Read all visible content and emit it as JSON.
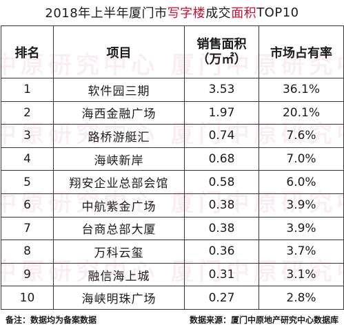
{
  "title": {
    "prefix": "2018年上半年厦门市",
    "highlight1": "写字楼",
    "middle": "成交",
    "highlight2": "面积",
    "suffix": "TOP10"
  },
  "headers": {
    "rank": "排名",
    "project": "项目",
    "area_line1": "销售面积",
    "area_line2": "（万㎡）",
    "share": "市场占有率"
  },
  "rows": [
    {
      "rank": "1",
      "project": "软件园三期",
      "area": "3.53",
      "share": "36.1%"
    },
    {
      "rank": "2",
      "project": "海西金融广场",
      "area": "1.97",
      "share": "20.1%"
    },
    {
      "rank": "3",
      "project": "路桥游艇汇",
      "area": "0.74",
      "share": "7.6%"
    },
    {
      "rank": "4",
      "project": "海峡新岸",
      "area": "0.68",
      "share": "7.0%"
    },
    {
      "rank": "5",
      "project": "翔安企业总部会馆",
      "area": "0.58",
      "share": "6.0%"
    },
    {
      "rank": "6",
      "project": "中航紫金广场",
      "area": "0.38",
      "share": "3.9%"
    },
    {
      "rank": "7",
      "project": "台商总部大厦",
      "area": "0.38",
      "share": "3.9%"
    },
    {
      "rank": "8",
      "project": "万科云玺",
      "area": "0.36",
      "share": "3.7%"
    },
    {
      "rank": "9",
      "project": "融信海上城",
      "area": "0.31",
      "share": "3.1%"
    },
    {
      "rank": "10",
      "project": "海峡明珠广场",
      "area": "0.27",
      "share": "2.8%"
    }
  ],
  "watermark_text": "中原研究中心 厦门中原研究中心",
  "footer": {
    "note": "备注：数据均为备案数据",
    "source": "数据来源：厦门中原地产研究中心数据库"
  }
}
